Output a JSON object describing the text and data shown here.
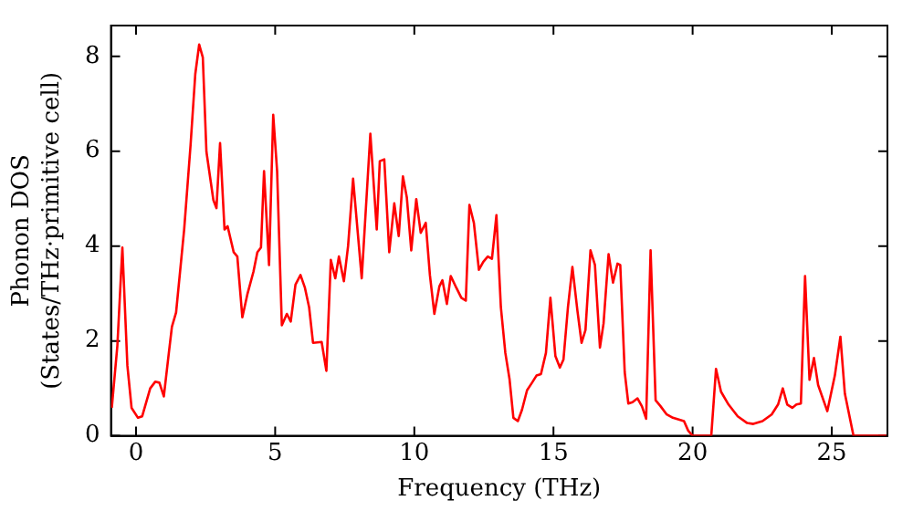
{
  "chart_data": {
    "type": "line",
    "xlabel": "Frequency (THz)",
    "ylabel": "Phonon DOS\n(States/THz·primitive cell)",
    "xlim": [
      -0.9,
      27
    ],
    "ylim": [
      0,
      8.65
    ],
    "xticks": [
      0,
      5,
      10,
      15,
      20,
      25
    ],
    "yticks": [
      0,
      2,
      4,
      6,
      8
    ],
    "grid": false,
    "legend": false,
    "marker": "none",
    "line_style": "solid",
    "series": [
      {
        "color": "#ff0000",
        "x": [
          -0.87,
          -0.67,
          -0.49,
          -0.31,
          -0.16,
          0.07,
          0.22,
          0.51,
          0.69,
          0.84,
          1.0,
          1.18,
          1.29,
          1.44,
          1.73,
          1.96,
          2.13,
          2.27,
          2.4,
          2.53,
          2.78,
          2.89,
          3.02,
          3.18,
          3.29,
          3.51,
          3.64,
          3.82,
          4.0,
          4.22,
          4.36,
          4.49,
          4.6,
          4.78,
          4.93,
          5.07,
          5.24,
          5.42,
          5.56,
          5.73,
          5.91,
          6.07,
          6.22,
          6.36,
          6.67,
          6.84,
          7.0,
          7.16,
          7.29,
          7.47,
          7.62,
          7.8,
          8.11,
          8.42,
          8.65,
          8.76,
          8.92,
          9.1,
          9.28,
          9.44,
          9.59,
          9.73,
          9.89,
          10.07,
          10.23,
          10.41,
          10.56,
          10.72,
          10.9,
          11.01,
          11.17,
          11.31,
          11.51,
          11.69,
          11.85,
          11.98,
          12.14,
          12.32,
          12.48,
          12.64,
          12.79,
          12.95,
          13.11,
          13.27,
          13.42,
          13.56,
          13.72,
          13.87,
          14.05,
          14.23,
          14.39,
          14.55,
          14.73,
          14.89,
          15.07,
          15.23,
          15.36,
          15.52,
          15.68,
          15.86,
          16.01,
          16.15,
          16.33,
          16.49,
          16.67,
          16.8,
          16.98,
          17.14,
          17.3,
          17.4,
          17.56,
          17.69,
          17.84,
          18.02,
          18.18,
          18.33,
          18.49,
          18.67,
          18.84,
          19.07,
          19.29,
          19.69,
          19.84,
          20.0,
          20.67,
          20.84,
          21.02,
          21.29,
          21.62,
          21.96,
          22.18,
          22.51,
          22.84,
          23.07,
          23.24,
          23.4,
          23.58,
          23.73,
          23.89,
          24.04,
          24.2,
          24.36,
          24.51,
          24.84,
          25.11,
          25.31,
          25.47,
          25.78,
          26.96
        ],
        "values": [
          0.59,
          1.9,
          3.97,
          1.48,
          0.59,
          0.38,
          0.41,
          1.0,
          1.14,
          1.12,
          0.83,
          1.75,
          2.3,
          2.6,
          4.35,
          6.13,
          7.63,
          8.25,
          7.98,
          5.99,
          4.97,
          4.8,
          6.17,
          4.35,
          4.42,
          3.87,
          3.78,
          2.5,
          2.98,
          3.46,
          3.87,
          3.97,
          5.58,
          3.6,
          6.77,
          5.58,
          2.33,
          2.57,
          2.41,
          3.19,
          3.39,
          3.12,
          2.71,
          1.96,
          1.98,
          1.37,
          3.71,
          3.32,
          3.78,
          3.26,
          4.0,
          5.42,
          3.32,
          6.37,
          4.35,
          5.79,
          5.83,
          3.87,
          4.9,
          4.21,
          5.47,
          5.03,
          3.91,
          4.99,
          4.28,
          4.49,
          3.39,
          2.57,
          3.15,
          3.28,
          2.78,
          3.37,
          3.12,
          2.91,
          2.85,
          4.87,
          4.49,
          3.5,
          3.67,
          3.78,
          3.73,
          4.65,
          2.71,
          1.75,
          1.2,
          0.38,
          0.31,
          0.55,
          0.96,
          1.12,
          1.27,
          1.3,
          1.75,
          2.91,
          1.68,
          1.44,
          1.61,
          2.71,
          3.56,
          2.64,
          1.96,
          2.23,
          3.91,
          3.6,
          1.86,
          2.37,
          3.83,
          3.23,
          3.63,
          3.6,
          1.34,
          0.68,
          0.71,
          0.79,
          0.62,
          0.36,
          3.91,
          0.75,
          0.63,
          0.45,
          0.38,
          0.31,
          0.11,
          0,
          0,
          1.41,
          0.93,
          0.66,
          0.41,
          0.27,
          0.25,
          0.31,
          0.45,
          0.66,
          1.0,
          0.66,
          0.59,
          0.66,
          0.68,
          3.37,
          1.18,
          1.64,
          1.07,
          0.52,
          1.27,
          2.09,
          0.89,
          0,
          0
        ]
      }
    ]
  }
}
